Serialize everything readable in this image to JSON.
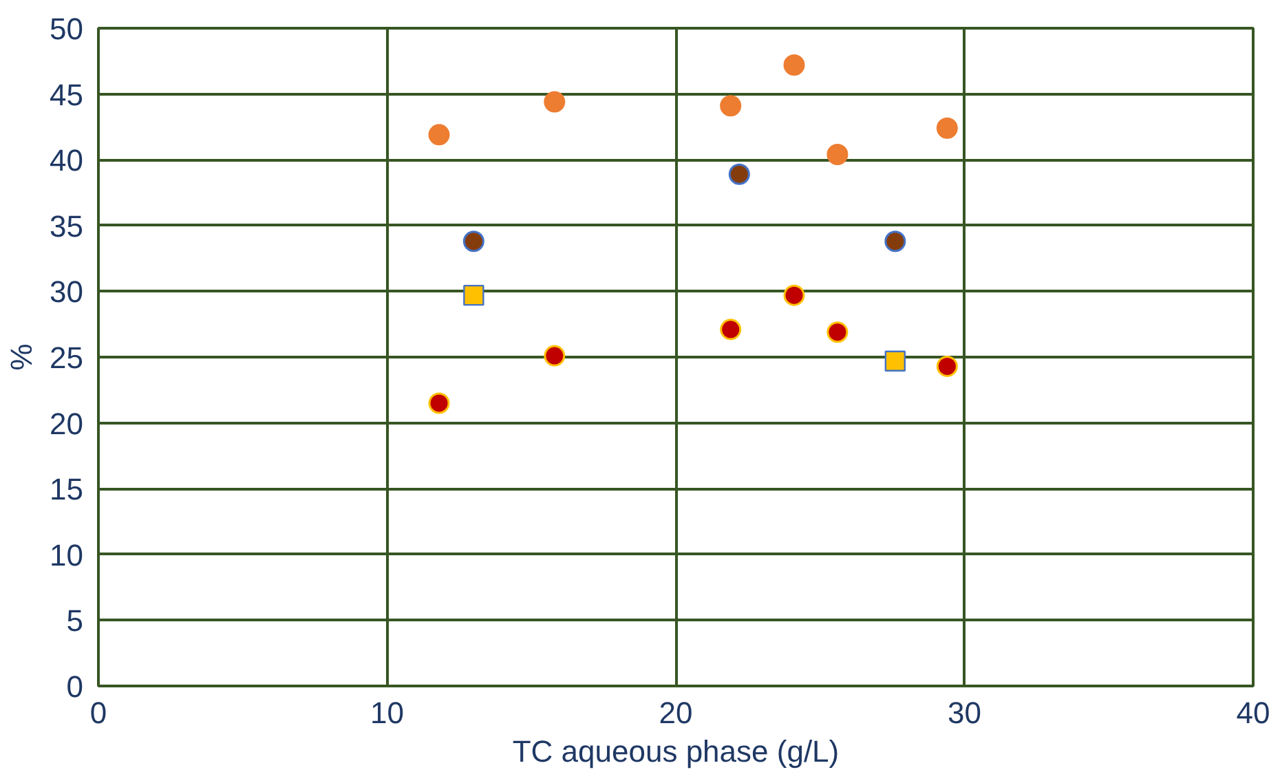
{
  "chart_data": {
    "type": "scatter",
    "xlabel": "TC aqueous phase (g/L)",
    "ylabel": "%",
    "xlim": [
      0,
      40
    ],
    "ylim": [
      0,
      50
    ],
    "xticks": [
      0,
      10,
      20,
      30,
      40
    ],
    "yticks": [
      0,
      5,
      10,
      15,
      20,
      25,
      30,
      35,
      40,
      45,
      50
    ],
    "grid": true,
    "series": [
      {
        "color": "#ed7d31",
        "marker": "circle",
        "x": [
          11.8,
          15.8,
          21.9,
          24.1,
          25.6,
          29.4
        ],
        "values": [
          41.9,
          44.4,
          44.1,
          47.2,
          40.4,
          42.4
        ]
      },
      {
        "color": "#843c0c",
        "marker": "circle",
        "x": [
          13.0,
          22.2,
          27.6
        ],
        "values": [
          33.8,
          38.9,
          33.8
        ]
      },
      {
        "color": "#ffc000",
        "marker": "square",
        "x": [
          13.0,
          27.6
        ],
        "values": [
          29.7,
          24.7
        ]
      },
      {
        "color": "#c00000",
        "marker": "circle",
        "x": [
          11.8,
          15.8,
          21.9,
          24.1,
          25.6,
          29.4
        ],
        "values": [
          21.5,
          25.1,
          27.1,
          29.7,
          26.9,
          24.3
        ]
      }
    ]
  }
}
